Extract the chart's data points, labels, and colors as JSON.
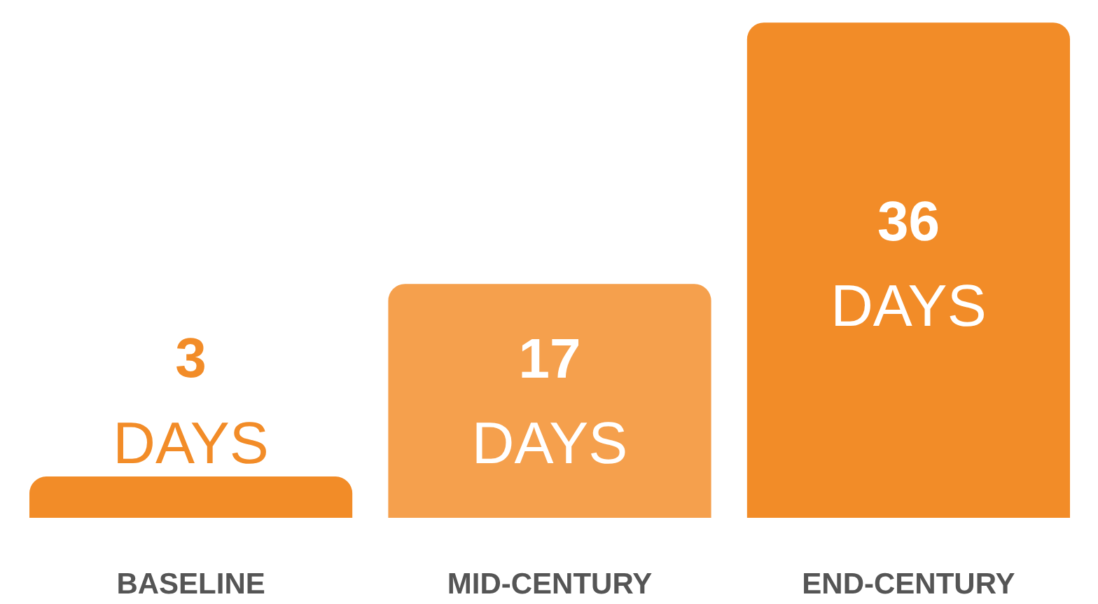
{
  "chart_data": {
    "type": "bar",
    "categories": [
      "BASELINE",
      "MID-CENTURY",
      "END-CENTURY"
    ],
    "values": [
      3,
      17,
      36
    ],
    "colors": [
      "#f28c28",
      "#f5a04d",
      "#f28c28"
    ],
    "value_labels": [
      "3\nDAYS",
      "17\nDAYS",
      "36\nDAYS"
    ],
    "grid": false
  }
}
